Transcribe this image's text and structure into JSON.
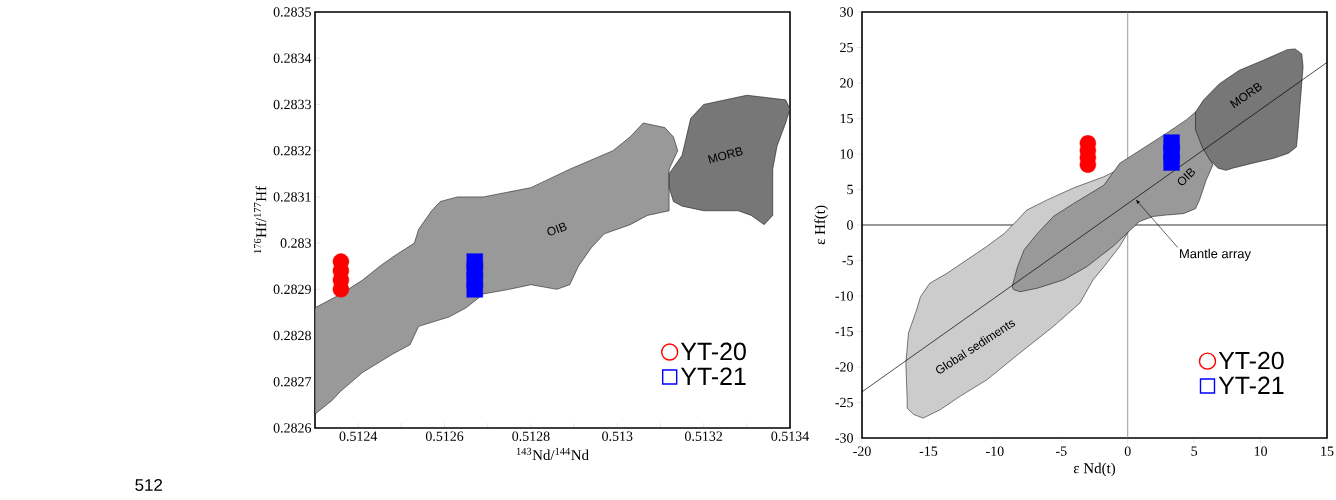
{
  "chart_data": [
    {
      "type": "scatter",
      "xlabel": "$^{143}$Nd/$^{144}$Nd",
      "ylabel": "$^{176}$Hf/$^{177}$Hf",
      "xlim": [
        0.5123,
        0.5134
      ],
      "ylim": [
        0.2826,
        0.2835
      ],
      "xticks": [
        0.5124,
        {
          "value": 0.5125,
          "label": null
        },
        0.5126,
        {
          "value": 0.5127,
          "label": null
        },
        0.5128,
        {
          "value": 0.5129,
          "label": null
        },
        0.513,
        {
          "value": 0.5131,
          "label": null
        },
        0.5132,
        {
          "value": 0.5133,
          "label": null
        },
        0.5134
      ],
      "yticks": [
        0.2826,
        0.2827,
        0.2828,
        0.2829,
        0.283,
        0.2831,
        0.2832,
        0.2833,
        0.2834,
        0.2835
      ],
      "legend": "bottom right",
      "series": [
        {
          "type": "area",
          "color": "#999999",
          "x": [
            0.5123,
            0.51236,
            0.51241,
            0.51245,
            0.51248,
            0.51253,
            0.51254,
            0.51257,
            0.51259,
            0.51263,
            0.51269,
            0.5128,
            0.51289,
            0.51299,
            0.51303,
            0.51306,
            0.51311,
            0.51313,
            0.51314,
            0.51312,
            0.51312,
            0.51307,
            0.51303,
            0.51297,
            0.51294,
            0.51291,
            0.51289,
            0.51286,
            0.5128,
            0.51275,
            0.51269,
            0.51265,
            0.51261,
            0.51254,
            0.51252,
            0.51248,
            0.51241,
            0.51236,
            0.51234,
            0.5123
          ],
          "values": [
            0.28286,
            0.28289,
            0.28292,
            0.28295,
            0.28297,
            0.283,
            0.28303,
            0.28307,
            0.28309,
            0.2831,
            0.2831,
            0.28312,
            0.28316,
            0.2832,
            0.28323,
            0.28326,
            0.28325,
            0.28323,
            0.2832,
            0.28316,
            0.28307,
            0.28306,
            0.28304,
            0.28302,
            0.28299,
            0.28295,
            0.28291,
            0.2829,
            0.28291,
            0.2829,
            0.28289,
            0.28286,
            0.28284,
            0.28282,
            0.28278,
            0.28276,
            0.28272,
            0.28268,
            0.28266,
            0.28263
          ]
        },
        {
          "type": "area",
          "color": "#777777",
          "x": [
            0.51312,
            0.51315,
            0.51317,
            0.5132,
            0.5133,
            0.51339,
            0.5134,
            0.51339,
            0.51337,
            0.51336,
            0.51336,
            0.51334,
            0.51331,
            0.51328,
            0.5132,
            0.51315,
            0.51313,
            0.51312
          ],
          "values": [
            0.28315,
            0.28319,
            0.28327,
            0.2833,
            0.28332,
            0.28331,
            0.28329,
            0.28326,
            0.28321,
            0.28316,
            0.28306,
            0.28304,
            0.28306,
            0.28307,
            0.28307,
            0.28308,
            0.28309,
            0.28312
          ]
        },
        {
          "name": "YT-20",
          "color": "#ff0000",
          "marker": "circle",
          "x": [
            0.51236,
            0.51236,
            0.51236,
            0.51236
          ],
          "values": [
            0.2829,
            0.28292,
            0.28294,
            0.28296
          ]
        },
        {
          "name": "YT-21",
          "color": "#0000ff",
          "marker": "square",
          "x": [
            0.51267,
            0.51267,
            0.51267,
            0.51267
          ],
          "values": [
            0.2829,
            0.28292,
            0.28294,
            0.28296
          ]
        }
      ],
      "annotations": [
        "OIB",
        "MORB",
        "512"
      ]
    },
    {
      "type": "scatter",
      "xlabel": "ε Nd(t)",
      "ylabel": "ε Hf(t)",
      "xlim": [
        -20,
        15
      ],
      "ylim": [
        -30,
        30
      ],
      "xticks": [
        -20,
        -15,
        -10,
        -5,
        0,
        5,
        10,
        15
      ],
      "yticks": [
        -30,
        -25,
        -20,
        -15,
        -10,
        -5,
        0,
        5,
        10,
        15,
        20,
        25,
        30
      ],
      "legend": "bottom right",
      "ref_lines": [
        {
          "axis": "x",
          "value": 0,
          "color": "#808080"
        },
        {
          "axis": "y",
          "value": 0,
          "color": "#000000"
        }
      ],
      "series": [
        {
          "type": "area",
          "color": "#cccccc",
          "x": [
            -16.6,
            -16.7,
            -16.5,
            -15.9,
            -15.6,
            -14.9,
            -13.6,
            -12.1,
            -10.6,
            -9.3,
            -8.3,
            -7.6,
            -6.1,
            -4.1,
            -1.8,
            -0.8,
            0.4,
            -0.6,
            -1.8,
            -2.6,
            -3.6,
            -5.6,
            -8.1,
            -10.6,
            -12.6,
            -14.1,
            -15.4,
            -16.1,
            -16.6
          ],
          "values": [
            -24.6,
            -19.5,
            -15.2,
            -12.0,
            -10.1,
            -8.2,
            -6.8,
            -4.9,
            -3.0,
            -1.2,
            0.7,
            2.1,
            3.5,
            5.2,
            6.8,
            7.7,
            0.2,
            -3.0,
            -5.9,
            -7.7,
            -11.0,
            -14.3,
            -18.0,
            -21.8,
            -24.1,
            -26.0,
            -27.2,
            -26.7,
            -25.8
          ]
        },
        {
          "type": "area",
          "color": "#999999",
          "x": [
            -8.7,
            -8.3,
            -7.8,
            -6.8,
            -5.6,
            -4.1,
            -1.8,
            -0.6,
            0.9,
            2.9,
            4.4,
            5.1,
            6.4,
            5.9,
            5.4,
            5.1,
            4.2,
            2.9,
            1.9,
            0.9,
            0.2,
            -1.1,
            -3.1,
            -4.8,
            -6.8,
            -8.1,
            -8.6
          ],
          "values": [
            -8.7,
            -5.9,
            -3.5,
            -1.2,
            1.2,
            3.0,
            5.6,
            8.7,
            10.5,
            12.9,
            14.8,
            15.9,
            8.4,
            6.3,
            3.5,
            2.3,
            1.6,
            1.4,
            1.2,
            0.5,
            -0.7,
            -3.0,
            -5.9,
            -7.7,
            -8.9,
            -9.4,
            -9.1
          ]
        },
        {
          "type": "area",
          "color": "#777777",
          "x": [
            5.1,
            5.7,
            6.9,
            8.4,
            10.2,
            12.0,
            12.6,
            13.1,
            13.2,
            13.0,
            12.8,
            12.7,
            12.1,
            11.0,
            9.4,
            7.9,
            7.4,
            6.8,
            6.2,
            5.6,
            5.1
          ],
          "values": [
            15.9,
            17.6,
            19.9,
            21.8,
            23.2,
            24.7,
            24.8,
            24.1,
            22.3,
            17.6,
            12.9,
            11.0,
            10.1,
            9.4,
            8.7,
            8.0,
            7.7,
            8.0,
            9.1,
            11.0,
            13.4
          ]
        },
        {
          "type": "line",
          "color": "#000000",
          "x": [
            -20,
            15
          ],
          "values": [
            -23.5,
            22.9
          ]
        },
        {
          "name": "YT-20",
          "color": "#ff0000",
          "marker": "circle",
          "x": [
            -3.0,
            -3.0,
            -3.0,
            -3.0
          ],
          "values": [
            8.5,
            9.5,
            10.5,
            11.5
          ]
        },
        {
          "name": "YT-21",
          "color": "#0000ff",
          "marker": "square",
          "x": [
            3.3,
            3.3,
            3.3
          ],
          "values": [
            8.8,
            10.2,
            11.6
          ]
        }
      ],
      "annotations": [
        "Global sediments",
        "OIB",
        "MORB",
        {
          "text": "Mantle array",
          "x": 0.6,
          "y": 3.6
        }
      ]
    }
  ]
}
